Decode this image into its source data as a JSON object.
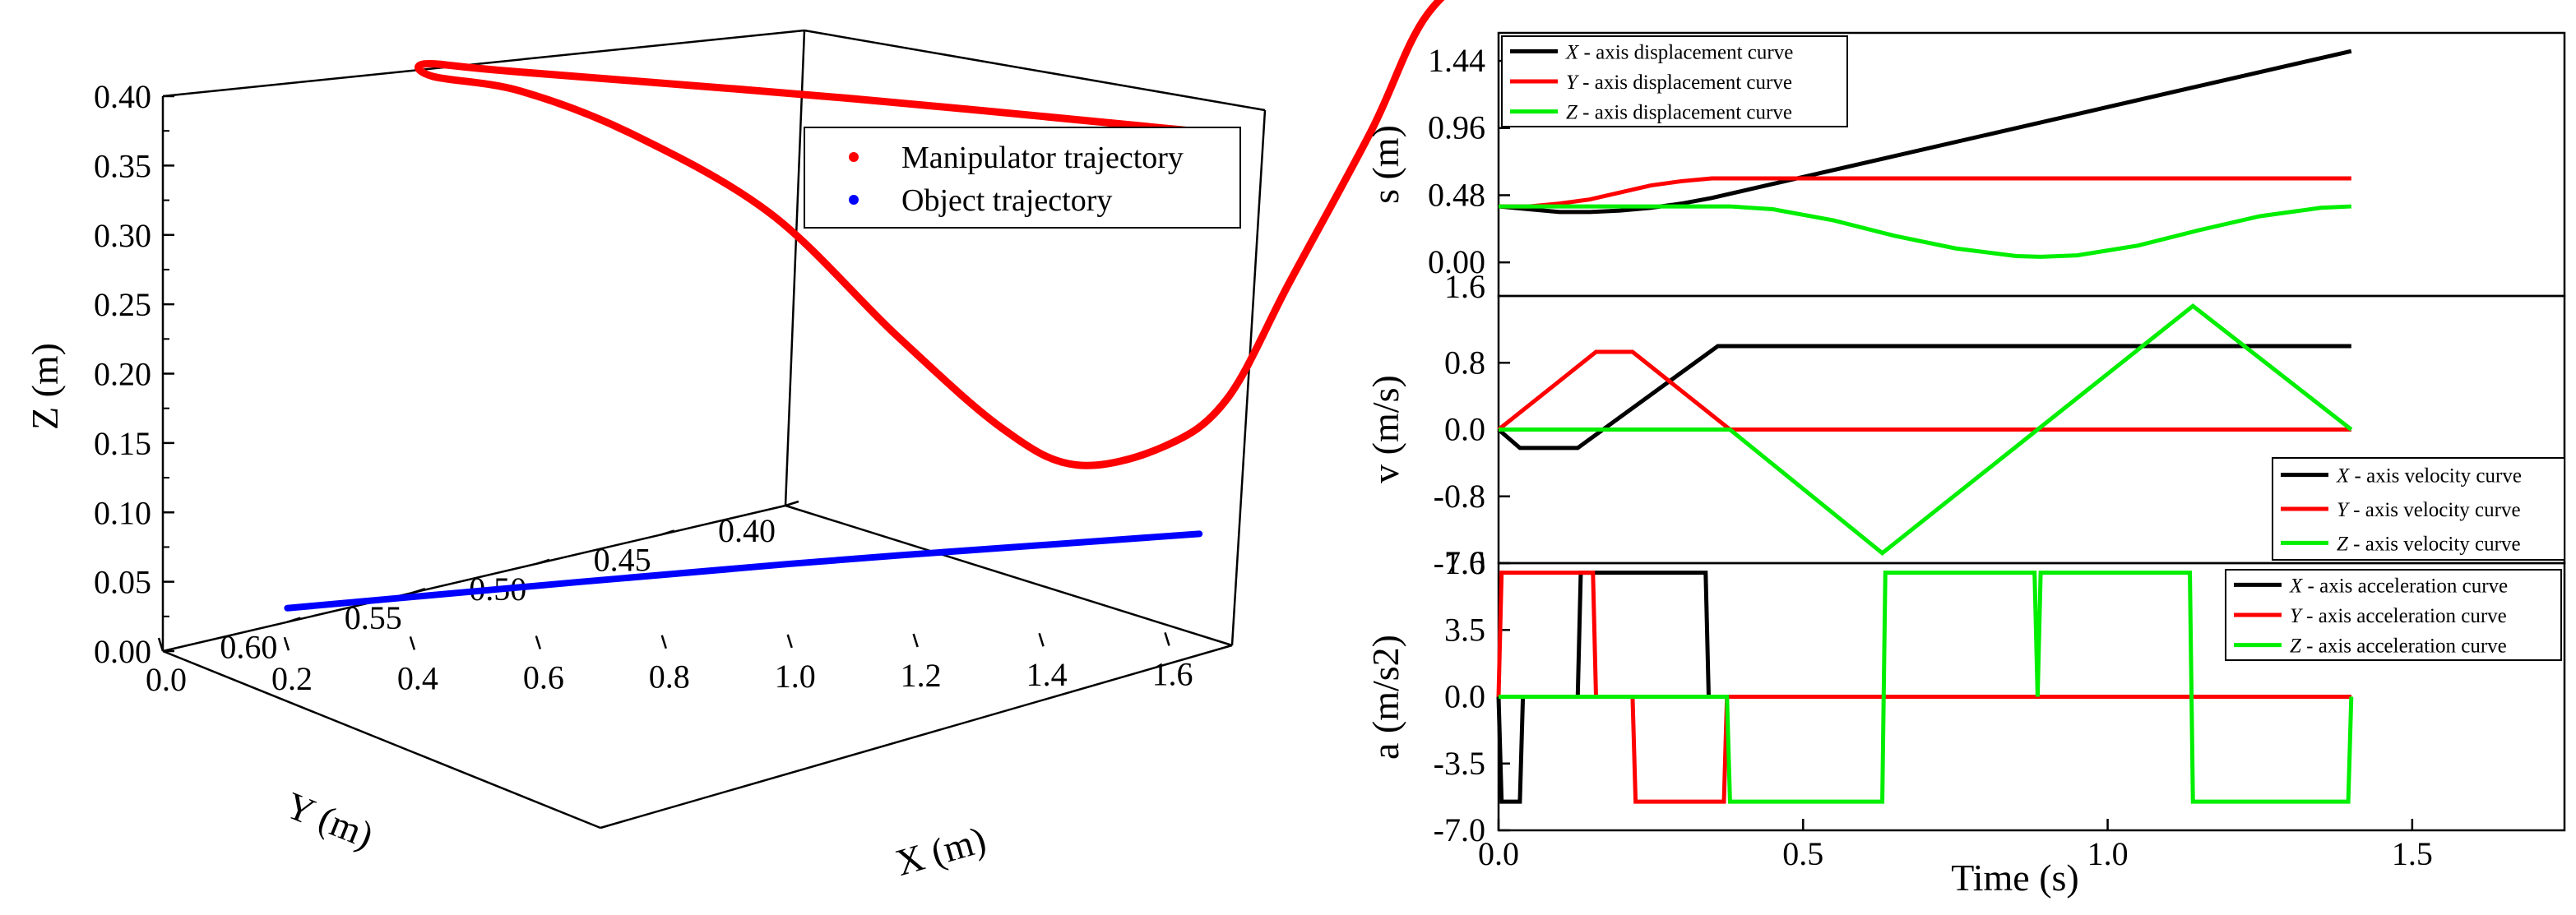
{
  "chart_data": [
    {
      "type": "scatter3d",
      "title": "",
      "xlabel": "X (m)",
      "ylabel": "Y (m)",
      "zlabel": "Z (m)",
      "xlim": [
        0.0,
        1.7
      ],
      "ylim": [
        0.4,
        0.65
      ],
      "zlim": [
        0.0,
        0.4
      ],
      "x_ticks": [
        "0.0",
        "0.2",
        "0.4",
        "0.6",
        "0.8",
        "1.0",
        "1.2",
        "1.4",
        "1.6"
      ],
      "y_ticks": [
        "0.40",
        "0.45",
        "0.50",
        "0.55",
        "0.60"
      ],
      "z_ticks": [
        "0.00",
        "0.05",
        "0.10",
        "0.15",
        "0.20",
        "0.25",
        "0.30",
        "0.35",
        "0.40"
      ],
      "legend_position": "top-right",
      "series": [
        {
          "name": "Manipulator trajectory",
          "color": "#ff0000",
          "points": [
            [
              1.45,
              0.6,
              0.35
            ],
            [
              0.9,
              0.6,
              0.375
            ],
            [
              0.4,
              0.61,
              0.4
            ],
            [
              0.3,
              0.62,
              0.41
            ],
            [
              0.35,
              0.63,
              0.405
            ],
            [
              0.45,
              0.62,
              0.39
            ],
            [
              0.55,
              0.6,
              0.35
            ],
            [
              0.65,
              0.57,
              0.28
            ],
            [
              0.73,
              0.54,
              0.18
            ],
            [
              0.78,
              0.51,
              0.1
            ],
            [
              0.82,
              0.49,
              0.065
            ],
            [
              0.88,
              0.47,
              0.07
            ],
            [
              0.94,
              0.46,
              0.1
            ],
            [
              1.0,
              0.45,
              0.18
            ],
            [
              1.05,
              0.43,
              0.28
            ],
            [
              1.1,
              0.42,
              0.36
            ],
            [
              1.18,
              0.41,
              0.4
            ],
            [
              1.25,
              0.4,
              0.425
            ]
          ]
        },
        {
          "name": "Object trajectory",
          "color": "#0000ff",
          "points": [
            [
              0.0,
              0.6,
              0.01
            ],
            [
              0.8,
              0.6,
              0.04
            ],
            [
              1.45,
              0.6,
              0.06
            ]
          ]
        }
      ]
    },
    {
      "type": "line",
      "title": "",
      "xlabel": "",
      "ylabel": "s (m)",
      "xlim": [
        0.0,
        1.75
      ],
      "ylim": [
        -0.24,
        1.64
      ],
      "y_ticks": [
        "0.00",
        "0.48",
        "0.96",
        "1.44"
      ],
      "extra_top_label": "1.6",
      "legend_position": "top-left",
      "series": [
        {
          "name_prefix": "X",
          "name_rest": " - axis displacement curve",
          "name": "X - axis displacement curve",
          "color": "#000000",
          "x": [
            0.0,
            0.05,
            0.1,
            0.15,
            0.2,
            0.25,
            0.3,
            0.35,
            0.4,
            0.6,
            0.8,
            1.0,
            1.2,
            1.4
          ],
          "values": [
            0.4,
            0.38,
            0.36,
            0.36,
            0.37,
            0.39,
            0.42,
            0.46,
            0.51,
            0.71,
            0.91,
            1.11,
            1.31,
            1.51
          ]
        },
        {
          "name_prefix": "Y",
          "name_rest": " - axis displacement curve",
          "name": "Y - axis displacement curve",
          "color": "#ff0000",
          "x": [
            0.0,
            0.05,
            0.1,
            0.15,
            0.2,
            0.25,
            0.3,
            0.35,
            0.4,
            0.6,
            0.8,
            1.0,
            1.2,
            1.4
          ],
          "values": [
            0.4,
            0.4,
            0.42,
            0.45,
            0.5,
            0.55,
            0.58,
            0.6,
            0.6,
            0.6,
            0.6,
            0.6,
            0.6,
            0.6
          ]
        },
        {
          "name_prefix": "Z",
          "name_rest": " - axis displacement curve",
          "name": "Z - axis displacement curve",
          "color": "#00ee00",
          "x": [
            0.0,
            0.05,
            0.1,
            0.2,
            0.3,
            0.38,
            0.45,
            0.55,
            0.65,
            0.75,
            0.85,
            0.89,
            0.95,
            1.05,
            1.15,
            1.25,
            1.35,
            1.4
          ],
          "values": [
            0.4,
            0.4,
            0.4,
            0.4,
            0.4,
            0.4,
            0.38,
            0.3,
            0.19,
            0.1,
            0.045,
            0.04,
            0.05,
            0.12,
            0.23,
            0.33,
            0.39,
            0.4
          ]
        }
      ]
    },
    {
      "type": "line",
      "title": "",
      "xlabel": "",
      "ylabel": "v (m/s)",
      "xlim": [
        0.0,
        1.75
      ],
      "ylim": [
        -1.6,
        1.6
      ],
      "y_ticks": [
        "-1.6",
        "-0.8",
        "0.0",
        "0.8"
      ],
      "legend_position": "bottom-right",
      "series": [
        {
          "name_prefix": "X",
          "name_rest": " - axis velocity curve",
          "name": "X - axis velocity curve",
          "color": "#000000",
          "x": [
            0.0,
            0.035,
            0.13,
            0.36,
            1.4
          ],
          "values": [
            0.0,
            -0.22,
            -0.22,
            1.0,
            1.0
          ]
        },
        {
          "name_prefix": "Y",
          "name_rest": " - axis velocity curve",
          "name": "Y - axis velocity curve",
          "color": "#ff0000",
          "x": [
            0.0,
            0.16,
            0.22,
            0.38,
            1.4
          ],
          "values": [
            0.0,
            0.93,
            0.93,
            0.0,
            0.0
          ]
        },
        {
          "name_prefix": "Z",
          "name_rest": " - axis velocity curve",
          "name": "Z - axis velocity curve",
          "color": "#00ee00",
          "x": [
            0.0,
            0.38,
            0.63,
            0.885,
            1.14,
            1.4
          ],
          "values": [
            0.0,
            0.0,
            -1.48,
            0.0,
            1.48,
            0.0
          ]
        }
      ]
    },
    {
      "type": "line",
      "title": "",
      "xlabel": "Time (s)",
      "ylabel": "a (m/s2)",
      "xlim": [
        0.0,
        1.75
      ],
      "ylim": [
        -7.0,
        7.0
      ],
      "x_ticks": [
        "0.0",
        "0.5",
        "1.0",
        "1.5"
      ],
      "y_ticks": [
        "-7.0",
        "-3.5",
        "0.0",
        "3.5",
        "7.0"
      ],
      "legend_position": "top-right",
      "series": [
        {
          "name_prefix": "X",
          "name_rest": " - axis acceleration curve",
          "name": "X - axis acceleration curve",
          "color": "#000000",
          "x": [
            0.0,
            0.005,
            0.035,
            0.04,
            0.13,
            0.135,
            0.34,
            0.345,
            1.4
          ],
          "values": [
            0.0,
            -5.5,
            -5.5,
            0.0,
            0.0,
            6.5,
            6.5,
            0.0,
            0.0
          ]
        },
        {
          "name_prefix": "Y",
          "name_rest": " - axis acceleration curve",
          "name": "Y - axis acceleration curve",
          "color": "#ff0000",
          "x": [
            0.0,
            0.005,
            0.155,
            0.16,
            0.22,
            0.225,
            0.37,
            0.375,
            1.4
          ],
          "values": [
            0.0,
            6.5,
            6.5,
            0.0,
            0.0,
            -5.5,
            -5.5,
            0.0,
            0.0
          ]
        },
        {
          "name_prefix": "Z",
          "name_rest": " - axis acceleration curve",
          "name": "Z - axis acceleration curve",
          "color": "#00ee00",
          "x": [
            0.0,
            0.375,
            0.38,
            0.63,
            0.635,
            0.88,
            0.885,
            0.89,
            1.135,
            1.14,
            1.395,
            1.4
          ],
          "values": [
            0.0,
            0.0,
            -5.5,
            -5.5,
            6.5,
            6.5,
            0.0,
            6.5,
            6.5,
            -5.5,
            -5.5,
            0.0
          ]
        }
      ]
    }
  ]
}
